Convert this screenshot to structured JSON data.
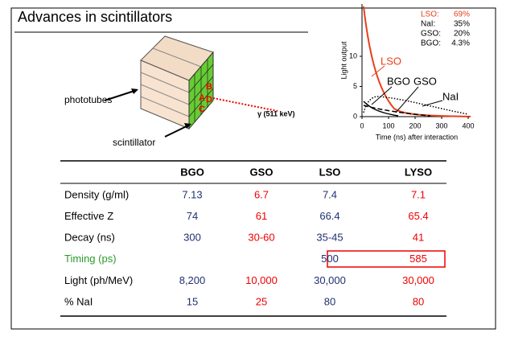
{
  "header": {
    "title": "Advances in scintillators"
  },
  "illustration": {
    "phototubes": "phototubes",
    "scintillator": "scintillator",
    "gamma": "γ (511 keV)"
  },
  "chart": {
    "ylabel": "Light output",
    "xlabel": "Time (ns) after interaction",
    "xticks": [
      0,
      100,
      200,
      300,
      400
    ],
    "yticks": [
      0,
      5,
      10
    ],
    "legend": [
      {
        "name": "LSO:",
        "value": "69%"
      },
      {
        "name": "NaI:",
        "value": "35%"
      },
      {
        "name": "GSO:",
        "value": "20%"
      },
      {
        "name": "BGO:",
        "value": "4.3%"
      }
    ],
    "curve_labels": [
      "LSO",
      "BGO",
      "GSO",
      "NaI"
    ]
  },
  "table": {
    "columns": [
      "BGO",
      "GSO",
      "LSO",
      "LYSO"
    ],
    "rows": [
      [
        "Density (g/ml)",
        "7.13",
        "6.7",
        "7.4",
        "7.1"
      ],
      [
        "Effective Z",
        "74",
        "61",
        "66.4",
        "65.4"
      ],
      [
        "Decay (ns)",
        "300",
        "30-60",
        "35-45",
        "41"
      ],
      [
        "Timing (ps)",
        null,
        null,
        "500",
        "585"
      ],
      [
        "Light (ph/MeV)",
        "8,200",
        "10,000",
        "30,000",
        "30,000"
      ],
      [
        "% NaI",
        "15",
        "25",
        "80",
        "80"
      ]
    ]
  }
}
